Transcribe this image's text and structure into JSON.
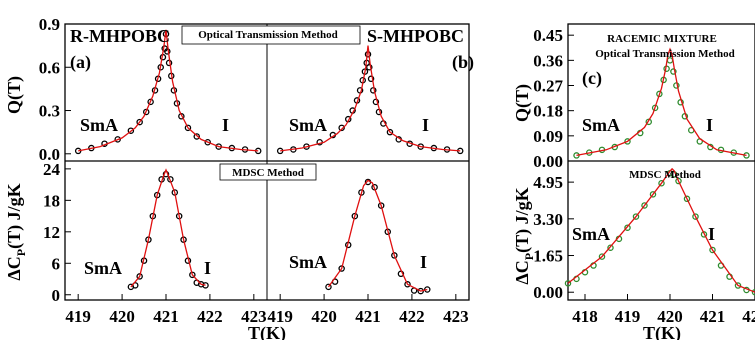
{
  "figure": {
    "xlabel": "T(K)",
    "ylabel_top": "Q(T)",
    "ylabel_bottom_prefix": "ΔC",
    "ylabel_bottom_sub": "P",
    "ylabel_bottom_suffix": "(T) J/gK"
  },
  "chart_data": [
    {
      "type": "scatter",
      "panel": "a",
      "panel_label": "(a)",
      "title": "R-MHPOBC",
      "method": "Optical Transmission Method",
      "phase_left": "SmA",
      "phase_right": "I",
      "ylabel": "Q(T)",
      "xlim": [
        418.7,
        423.3
      ],
      "ylim": [
        -0.05,
        0.9
      ],
      "yticks": [
        "0.0",
        "0.3",
        "0.6",
        "0.9"
      ],
      "yticks_values": [
        0.0,
        0.3,
        0.6,
        0.9
      ],
      "xticks": [],
      "series": [
        {
          "kind": "markers",
          "color": "#000000",
          "x": [
            419.0,
            419.3,
            419.6,
            419.9,
            420.2,
            420.4,
            420.55,
            420.65,
            420.75,
            420.82,
            420.88,
            420.93,
            420.97,
            421.0,
            421.03,
            421.07,
            421.12,
            421.18,
            421.25,
            421.35,
            421.5,
            421.7,
            421.95,
            422.2,
            422.5,
            422.8,
            423.1
          ],
          "y": [
            0.02,
            0.04,
            0.07,
            0.1,
            0.16,
            0.22,
            0.29,
            0.36,
            0.44,
            0.52,
            0.6,
            0.67,
            0.73,
            0.83,
            0.71,
            0.63,
            0.54,
            0.44,
            0.35,
            0.26,
            0.18,
            0.12,
            0.08,
            0.05,
            0.04,
            0.03,
            0.02
          ]
        },
        {
          "kind": "line",
          "color": "#e01010",
          "x": [
            419.0,
            419.5,
            420.0,
            420.3,
            420.5,
            420.7,
            420.85,
            420.95,
            421.0,
            421.05,
            421.15,
            421.3,
            421.5,
            421.8,
            422.2,
            422.7,
            423.1
          ],
          "y": [
            0.02,
            0.05,
            0.11,
            0.18,
            0.26,
            0.4,
            0.56,
            0.74,
            0.86,
            0.72,
            0.5,
            0.3,
            0.18,
            0.1,
            0.05,
            0.03,
            0.02
          ]
        }
      ]
    },
    {
      "type": "scatter",
      "panel": "b",
      "panel_label": "(b)",
      "title": "S-MHPOBC",
      "phase_left": "SmA",
      "phase_right": "I",
      "xlim": [
        418.7,
        423.3
      ],
      "ylim": [
        -0.05,
        0.9
      ],
      "series": [
        {
          "kind": "markers",
          "color": "#000000",
          "x": [
            419.0,
            419.3,
            419.6,
            419.9,
            420.2,
            420.4,
            420.55,
            420.65,
            420.75,
            420.82,
            420.88,
            420.93,
            420.97,
            421.0,
            421.03,
            421.07,
            421.12,
            421.18,
            421.25,
            421.35,
            421.5,
            421.7,
            421.95,
            422.2,
            422.5,
            422.8,
            423.1
          ],
          "y": [
            0.02,
            0.03,
            0.05,
            0.08,
            0.13,
            0.18,
            0.24,
            0.3,
            0.37,
            0.44,
            0.51,
            0.57,
            0.63,
            0.69,
            0.6,
            0.52,
            0.44,
            0.36,
            0.29,
            0.21,
            0.15,
            0.1,
            0.07,
            0.05,
            0.04,
            0.03,
            0.02
          ]
        },
        {
          "kind": "line",
          "color": "#e01010",
          "x": [
            419.0,
            419.5,
            420.0,
            420.3,
            420.5,
            420.7,
            420.85,
            420.95,
            421.0,
            421.05,
            421.15,
            421.3,
            421.5,
            421.8,
            422.2,
            422.7,
            423.1
          ],
          "y": [
            0.02,
            0.04,
            0.08,
            0.14,
            0.2,
            0.31,
            0.44,
            0.6,
            0.75,
            0.62,
            0.43,
            0.26,
            0.15,
            0.09,
            0.05,
            0.03,
            0.02
          ]
        }
      ]
    },
    {
      "type": "scatter",
      "panel": "a-bottom",
      "method": "MDSC Method",
      "phase_left": "SmA",
      "phase_right": "I",
      "ylabel": "ΔCP(T) J/gK",
      "xlim": [
        418.7,
        423.3
      ],
      "ylim": [
        -1.0,
        25.5
      ],
      "yticks": [
        "0",
        "6",
        "12",
        "18",
        "24"
      ],
      "yticks_values": [
        0,
        6,
        12,
        18,
        24
      ],
      "xticks": [
        "419",
        "420",
        "421",
        "422",
        "423"
      ],
      "xticks_values": [
        419,
        420,
        421,
        422,
        423
      ],
      "series": [
        {
          "kind": "markers",
          "color": "#000000",
          "x": [
            420.2,
            420.3,
            420.4,
            420.5,
            420.6,
            420.7,
            420.8,
            420.9,
            421.0,
            421.1,
            421.2,
            421.3,
            421.4,
            421.5,
            421.6,
            421.7,
            421.8,
            421.9
          ],
          "y": [
            1.5,
            1.8,
            3.5,
            6.5,
            10.5,
            15.0,
            19.0,
            22.0,
            23.0,
            22.0,
            19.5,
            15.0,
            10.5,
            6.5,
            3.8,
            2.3,
            2.0,
            1.8
          ]
        },
        {
          "kind": "line",
          "color": "#e01010",
          "x": [
            420.2,
            420.4,
            420.6,
            420.8,
            420.95,
            421.0,
            421.05,
            421.2,
            421.4,
            421.6,
            421.8,
            421.9
          ],
          "y": [
            1.5,
            3.5,
            10.5,
            19.0,
            22.8,
            23.8,
            22.8,
            19.5,
            10.5,
            3.8,
            2.0,
            1.8
          ]
        }
      ]
    },
    {
      "type": "scatter",
      "panel": "b-bottom",
      "phase_left": "SmA",
      "phase_right": "I",
      "xlim": [
        418.7,
        423.3
      ],
      "ylim": [
        -1.0,
        25.5
      ],
      "xticks": [
        "419",
        "420",
        "421",
        "422",
        "423"
      ],
      "xticks_values": [
        419,
        420,
        421,
        422,
        423
      ],
      "series": [
        {
          "kind": "markers",
          "color": "#000000",
          "x": [
            420.1,
            420.25,
            420.4,
            420.55,
            420.7,
            420.85,
            421.0,
            421.15,
            421.3,
            421.45,
            421.6,
            421.75,
            421.9,
            422.05,
            422.2,
            422.35
          ],
          "y": [
            1.5,
            2.5,
            5.0,
            9.5,
            15.0,
            19.5,
            21.5,
            20.5,
            17.0,
            12.0,
            7.5,
            4.0,
            2.0,
            0.8,
            0.7,
            1.0
          ]
        },
        {
          "kind": "line",
          "color": "#e01010",
          "x": [
            420.1,
            420.4,
            420.7,
            420.9,
            421.0,
            421.1,
            421.3,
            421.6,
            421.9,
            422.2,
            422.35
          ],
          "y": [
            1.5,
            5.0,
            15.0,
            20.8,
            21.8,
            21.3,
            17.0,
            7.5,
            2.0,
            0.7,
            1.0
          ]
        }
      ]
    },
    {
      "type": "scatter",
      "panel": "c",
      "panel_label": "(c)",
      "title": "RACEMIC MIXTURE",
      "method": "Optical Transmission Method",
      "phase_left": "SmA",
      "phase_right": "I",
      "ylabel": "Q(T)",
      "xlim": [
        417.6,
        422.0
      ],
      "ylim": [
        0.0,
        0.49
      ],
      "yticks": [
        "0.00",
        "0.09",
        "0.18",
        "0.27",
        "0.36",
        "0.45"
      ],
      "yticks_values": [
        0.0,
        0.09,
        0.18,
        0.27,
        0.36,
        0.45
      ],
      "series": [
        {
          "kind": "markers",
          "color": "#2e8b2e",
          "x": [
            417.8,
            418.1,
            418.4,
            418.7,
            419.0,
            419.3,
            419.5,
            419.65,
            419.75,
            419.85,
            419.92,
            420.0,
            420.08,
            420.15,
            420.25,
            420.35,
            420.5,
            420.7,
            420.95,
            421.2,
            421.5,
            421.8
          ],
          "y": [
            0.02,
            0.03,
            0.04,
            0.05,
            0.07,
            0.1,
            0.14,
            0.19,
            0.24,
            0.29,
            0.33,
            0.36,
            0.32,
            0.27,
            0.21,
            0.16,
            0.11,
            0.07,
            0.05,
            0.04,
            0.03,
            0.02
          ]
        },
        {
          "kind": "line",
          "color": "#e01010",
          "x": [
            417.8,
            418.5,
            419.0,
            419.4,
            419.6,
            419.8,
            419.9,
            419.95,
            420.0,
            420.05,
            420.1,
            420.2,
            420.4,
            420.7,
            421.1,
            421.8
          ],
          "y": [
            0.02,
            0.04,
            0.07,
            0.12,
            0.17,
            0.26,
            0.33,
            0.38,
            0.4,
            0.38,
            0.33,
            0.25,
            0.15,
            0.08,
            0.04,
            0.02
          ]
        }
      ]
    },
    {
      "type": "scatter",
      "panel": "c-bottom",
      "method": "MDSC Method",
      "phase_left": "SmA",
      "phase_right": "I",
      "ylabel": "ΔCP(T) J/gK",
      "xlim": [
        417.6,
        422.0
      ],
      "ylim": [
        -0.35,
        5.9
      ],
      "yticks": [
        "0.00",
        "1.65",
        "3.30",
        "4.95"
      ],
      "yticks_values": [
        0.0,
        1.65,
        3.3,
        4.95
      ],
      "xticks": [
        "418",
        "419",
        "420",
        "421",
        "422"
      ],
      "xticks_values": [
        418,
        419,
        420,
        421,
        422
      ],
      "series": [
        {
          "kind": "markers",
          "color": "#2e8b2e",
          "x": [
            417.6,
            417.8,
            418.0,
            418.2,
            418.4,
            418.6,
            418.8,
            419.0,
            419.2,
            419.4,
            419.6,
            419.8,
            420.0,
            420.1,
            420.2,
            420.4,
            420.6,
            420.8,
            421.0,
            421.2,
            421.4,
            421.6,
            421.8,
            422.0
          ],
          "y": [
            0.4,
            0.6,
            0.9,
            1.2,
            1.6,
            2.0,
            2.4,
            2.9,
            3.4,
            3.9,
            4.4,
            4.9,
            5.35,
            5.3,
            5.0,
            4.2,
            3.4,
            2.6,
            1.9,
            1.2,
            0.7,
            0.3,
            0.1,
            0.0
          ]
        },
        {
          "kind": "line",
          "color": "#e01010",
          "x": [
            417.6,
            418.4,
            419.2,
            419.8,
            420.0,
            420.05,
            420.1,
            420.2,
            420.6,
            421.0,
            421.6,
            422.0
          ],
          "y": [
            0.4,
            1.6,
            3.4,
            4.9,
            5.45,
            5.55,
            5.45,
            5.0,
            3.4,
            1.9,
            0.3,
            0.0
          ]
        }
      ]
    }
  ]
}
